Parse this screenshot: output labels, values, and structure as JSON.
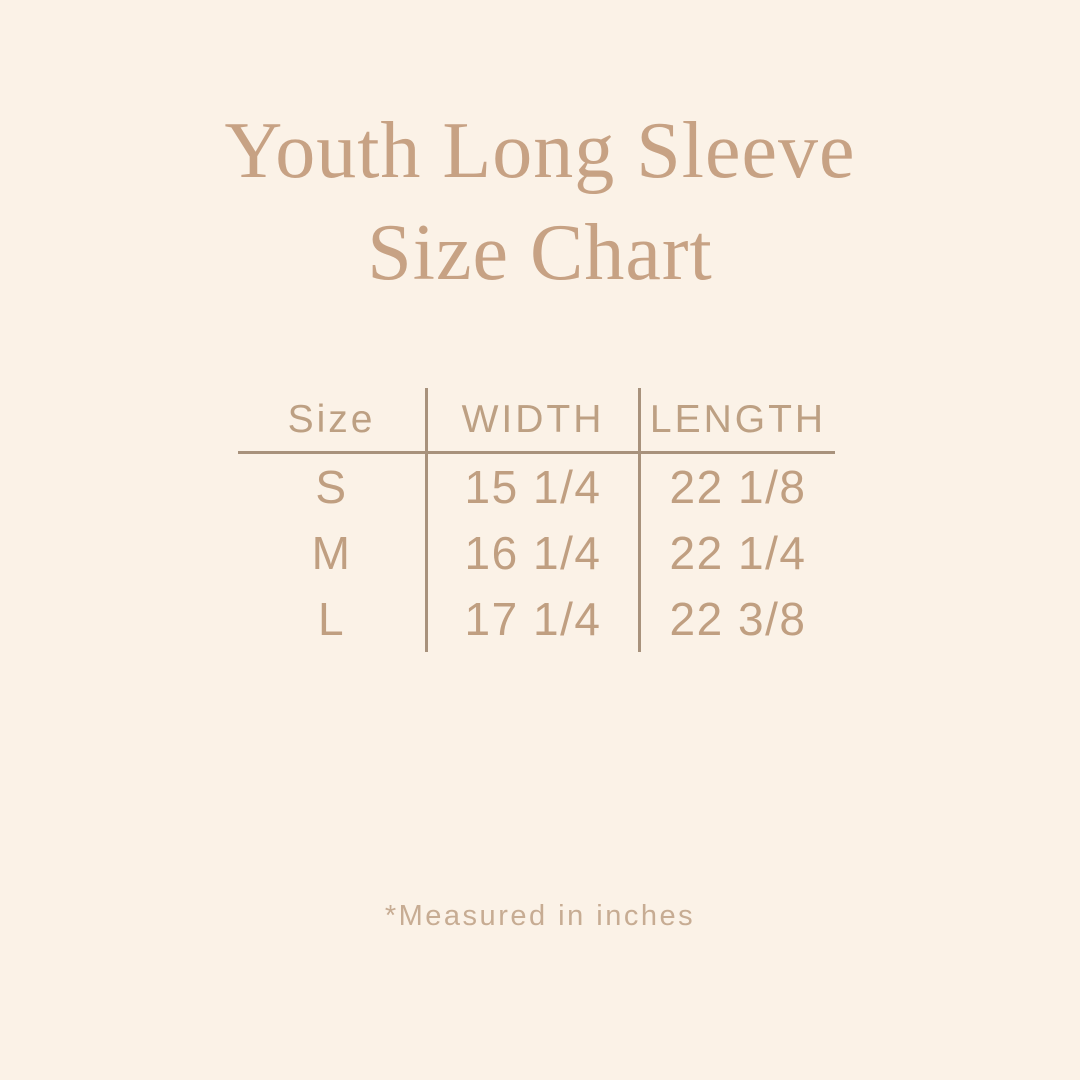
{
  "colors": {
    "background": "#fbf2e7",
    "title_text": "#c7a284",
    "table_text": "#c09f81",
    "header_text": "#bda083",
    "divider_line": "#a8927c",
    "footnote_text": "#c7ac93"
  },
  "chart_data": {
    "type": "table",
    "title": "Youth Long Sleeve Size Chart",
    "title_lines": [
      "Youth Long Sleeve",
      "Size Chart"
    ],
    "columns": [
      "Size",
      "WIDTH",
      "LENGTH"
    ],
    "rows": [
      [
        "S",
        "15 1/4",
        "22 1/8"
      ],
      [
        "M",
        "16 1/4",
        "22 1/4"
      ],
      [
        "L",
        "17 1/4",
        "22 3/8"
      ]
    ],
    "footnote": "*Measured in inches",
    "units": "inches",
    "layout": {
      "grid": "off",
      "header_rule": "horizontal line below header",
      "column_dividers": "vertical lines between the 3 columns"
    }
  }
}
